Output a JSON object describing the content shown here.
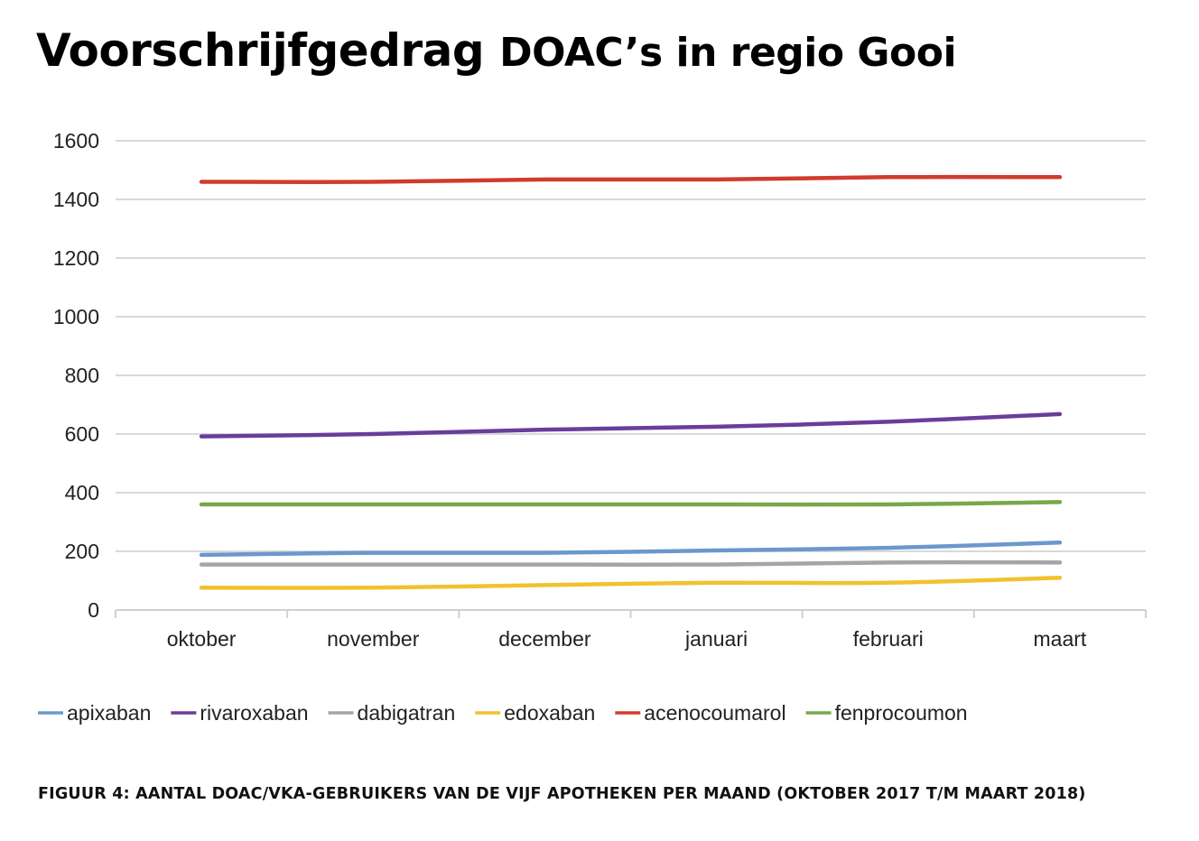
{
  "title": {
    "part1": "Voorschrijfgedrag ",
    "part2": "DOAC’s in regio Gooi"
  },
  "caption": "FIGUUR 4: AANTAL DOAC/VKA-GEBRUIKERS VAN DE VIJF APOTHEKEN PER MAAND (OKTOBER 2017 T/M MAART 2018)",
  "chart_data": {
    "type": "line",
    "title": "",
    "xlabel": "",
    "ylabel": "",
    "ylim": [
      0,
      1600
    ],
    "yticks": [
      0,
      200,
      400,
      600,
      800,
      1000,
      1200,
      1400,
      1600
    ],
    "grid": true,
    "legend_position": "bottom",
    "categories": [
      "oktober",
      "november",
      "december",
      "januari",
      "februari",
      "maart"
    ],
    "series": [
      {
        "name": "apixaban",
        "color": "#6b98cc",
        "values": [
          188,
          195,
          195,
          203,
          212,
          230
        ]
      },
      {
        "name": "rivaroxaban",
        "color": "#6a3d9a",
        "values": [
          592,
          600,
          615,
          625,
          642,
          668
        ]
      },
      {
        "name": "dabigatran",
        "color": "#a5a5a5",
        "values": [
          155,
          155,
          155,
          155,
          162,
          162
        ]
      },
      {
        "name": "edoxaban",
        "color": "#f2c12e",
        "values": [
          76,
          76,
          85,
          93,
          93,
          110
        ]
      },
      {
        "name": "acenocoumarol",
        "color": "#d13b2f",
        "values": [
          1460,
          1460,
          1468,
          1468,
          1476,
          1476
        ]
      },
      {
        "name": "fenprocoumon",
        "color": "#77a84b",
        "values": [
          360,
          360,
          360,
          360,
          360,
          368
        ]
      }
    ]
  }
}
